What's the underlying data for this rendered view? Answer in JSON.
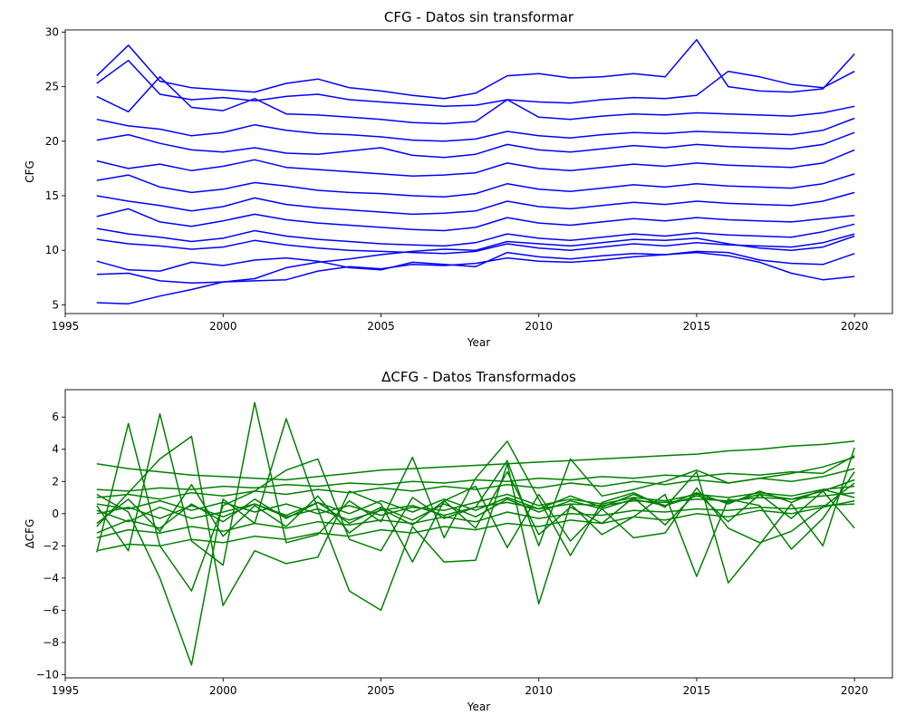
{
  "chart_data": [
    {
      "type": "line",
      "title": "CFG - Datos sin transformar",
      "xlabel": "Year",
      "ylabel": "CFG",
      "xlim": [
        1995,
        2021.2
      ],
      "ylim": [
        4.2,
        30.2
      ],
      "xticks": [
        1995,
        2000,
        2005,
        2010,
        2015,
        2020
      ],
      "yticks": [
        5,
        10,
        15,
        20,
        25,
        30
      ],
      "grid": false,
      "legend": "none",
      "line_color": "#0000ff",
      "x": [
        1996,
        1997,
        1998,
        1999,
        2000,
        2001,
        2002,
        2003,
        2004,
        2005,
        2006,
        2007,
        2008,
        2009,
        2010,
        2011,
        2012,
        2013,
        2014,
        2015,
        2016,
        2017,
        2018,
        2019,
        2020
      ],
      "series": [
        {
          "values": [
            26.0,
            28.8,
            25.5,
            24.9,
            24.7,
            24.5,
            25.3,
            25.7,
            24.9,
            24.6,
            24.2,
            23.9,
            24.4,
            26.0,
            26.2,
            25.8,
            25.9,
            26.2,
            25.9,
            29.3,
            25.0,
            24.6,
            24.5,
            24.8,
            28.0
          ]
        },
        {
          "values": [
            25.3,
            27.4,
            24.3,
            23.8,
            24.0,
            23.7,
            24.1,
            24.3,
            23.8,
            23.6,
            23.4,
            23.2,
            23.3,
            23.8,
            23.6,
            23.5,
            23.8,
            24.0,
            23.9,
            24.2,
            26.4,
            25.9,
            25.2,
            24.9,
            26.4
          ]
        },
        {
          "values": [
            24.1,
            22.7,
            25.9,
            23.1,
            22.8,
            23.9,
            22.5,
            22.4,
            22.2,
            22.0,
            21.7,
            21.6,
            21.8,
            23.8,
            22.2,
            22.0,
            22.3,
            22.5,
            22.4,
            22.6,
            22.5,
            22.4,
            22.3,
            22.6,
            23.2
          ]
        },
        {
          "values": [
            22.0,
            21.4,
            21.1,
            20.5,
            20.8,
            21.5,
            21.0,
            20.7,
            20.6,
            20.4,
            20.1,
            20.0,
            20.2,
            20.9,
            20.5,
            20.3,
            20.6,
            20.8,
            20.7,
            20.9,
            20.8,
            20.7,
            20.6,
            21.0,
            22.1
          ]
        },
        {
          "values": [
            20.1,
            20.6,
            19.8,
            19.2,
            19.0,
            19.4,
            18.9,
            18.8,
            19.1,
            19.4,
            18.7,
            18.5,
            18.8,
            19.7,
            19.2,
            19.0,
            19.3,
            19.6,
            19.4,
            19.7,
            19.5,
            19.4,
            19.3,
            19.7,
            20.8
          ]
        },
        {
          "values": [
            18.2,
            17.5,
            17.9,
            17.3,
            17.7,
            18.3,
            17.6,
            17.4,
            17.2,
            17.0,
            16.8,
            16.9,
            17.1,
            18.0,
            17.5,
            17.3,
            17.6,
            17.9,
            17.7,
            18.0,
            17.8,
            17.7,
            17.6,
            18.0,
            19.2
          ]
        },
        {
          "values": [
            16.4,
            16.9,
            15.8,
            15.3,
            15.6,
            16.2,
            15.9,
            15.5,
            15.3,
            15.2,
            15.0,
            14.9,
            15.2,
            16.1,
            15.6,
            15.4,
            15.7,
            16.0,
            15.8,
            16.1,
            15.9,
            15.8,
            15.7,
            16.1,
            17.0
          ]
        },
        {
          "values": [
            15.0,
            14.5,
            14.1,
            13.6,
            14.0,
            14.8,
            14.2,
            13.9,
            13.7,
            13.5,
            13.3,
            13.4,
            13.6,
            14.5,
            14.0,
            13.8,
            14.1,
            14.4,
            14.2,
            14.5,
            14.3,
            14.2,
            14.1,
            14.5,
            15.3
          ]
        },
        {
          "values": [
            13.1,
            13.8,
            12.6,
            12.2,
            12.7,
            13.3,
            12.8,
            12.5,
            12.3,
            12.1,
            11.9,
            11.8,
            12.1,
            13.0,
            12.5,
            12.3,
            12.6,
            12.9,
            12.7,
            13.0,
            12.8,
            12.7,
            12.6,
            12.9,
            13.2
          ]
        },
        {
          "values": [
            12.0,
            11.5,
            11.2,
            10.8,
            11.1,
            11.8,
            11.3,
            11.0,
            10.8,
            10.6,
            10.5,
            10.4,
            10.7,
            11.5,
            11.1,
            10.9,
            11.2,
            11.5,
            11.3,
            11.6,
            11.4,
            11.3,
            11.2,
            11.7,
            12.4
          ]
        },
        {
          "values": [
            11.0,
            10.6,
            10.4,
            10.1,
            10.3,
            10.9,
            10.5,
            10.2,
            10.0,
            9.9,
            9.8,
            9.7,
            9.9,
            10.6,
            10.2,
            10.0,
            10.3,
            10.6,
            10.4,
            10.7,
            10.5,
            10.4,
            10.3,
            10.7,
            11.5
          ]
        },
        {
          "values": [
            9.0,
            8.2,
            8.1,
            8.9,
            8.6,
            9.1,
            9.3,
            9.0,
            8.4,
            8.2,
            8.9,
            8.7,
            8.5,
            9.8,
            9.4,
            9.2,
            9.5,
            9.7,
            9.6,
            9.9,
            9.8,
            9.1,
            8.8,
            8.7,
            9.7
          ]
        },
        {
          "values": [
            7.8,
            7.9,
            7.2,
            7.0,
            7.1,
            7.2,
            7.3,
            8.1,
            8.5,
            8.3,
            8.7,
            8.6,
            8.8,
            9.3,
            9.0,
            8.9,
            9.1,
            9.4,
            9.6,
            9.8,
            9.5,
            8.9,
            7.9,
            7.3,
            7.6
          ]
        },
        {
          "values": [
            5.2,
            5.1,
            5.8,
            6.4,
            7.1,
            7.4,
            8.4,
            8.9,
            9.2,
            9.6,
            9.9,
            10.1,
            10.0,
            10.8,
            10.6,
            10.4,
            10.7,
            11.0,
            10.9,
            11.1,
            10.6,
            10.2,
            10.0,
            10.3,
            11.3
          ]
        }
      ]
    },
    {
      "type": "line",
      "title": "ΔCFG - Datos Transformados",
      "xlabel": "Year",
      "ylabel": "ΔCFG",
      "xlim": [
        1995,
        2021.2
      ],
      "ylim": [
        -10.2,
        7.7
      ],
      "xticks": [
        1995,
        2000,
        2005,
        2010,
        2015,
        2020
      ],
      "yticks": [
        -10,
        -8,
        -6,
        -4,
        -2,
        0,
        2,
        4,
        6
      ],
      "grid": false,
      "legend": "none",
      "line_color": "#008000",
      "x": [
        1996,
        1997,
        1998,
        1999,
        2000,
        2001,
        2002,
        2003,
        2004,
        2005,
        2006,
        2007,
        2008,
        2009,
        2010,
        2011,
        2012,
        2013,
        2014,
        2015,
        2016,
        2017,
        2018,
        2019,
        2020
      ],
      "series": [
        {
          "values": [
            3.1,
            2.8,
            2.6,
            2.4,
            2.3,
            2.2,
            2.1,
            2.3,
            2.5,
            2.7,
            2.8,
            2.9,
            3.0,
            3.1,
            3.2,
            3.3,
            3.4,
            3.5,
            3.6,
            3.7,
            3.9,
            4.0,
            4.2,
            4.3,
            4.5
          ]
        },
        {
          "values": [
            -2.4,
            5.6,
            -2.0,
            -4.8,
            0.5,
            1.4,
            2.7,
            3.4,
            -1.6,
            -2.3,
            1.0,
            -0.3,
            0.4,
            3.3,
            -2.0,
            3.4,
            1.1,
            1.5,
            2.0,
            2.7,
            1.9,
            2.2,
            2.5,
            2.9,
            3.5
          ]
        },
        {
          "values": [
            0.5,
            -2.3,
            6.2,
            -1.7,
            -3.2,
            6.9,
            -1.8,
            -1.3,
            0.8,
            -0.5,
            3.5,
            -1.5,
            2.2,
            4.5,
            0.9,
            -2.6,
            0.7,
            1.3,
            0.4,
            2.6,
            -4.3,
            -1.9,
            0.6,
            -2.0,
            4.1
          ]
        },
        {
          "values": [
            1.2,
            0.1,
            -4.0,
            -9.4,
            0.9,
            -0.6,
            5.9,
            0.3,
            -4.8,
            -6.0,
            -0.8,
            -3.0,
            -2.9,
            3.1,
            -5.6,
            0.6,
            -1.3,
            -0.2,
            1.2,
            -3.9,
            0.9,
            0.5,
            -2.2,
            -0.3,
            2.6
          ]
        },
        {
          "values": [
            -0.8,
            1.3,
            3.4,
            4.8,
            -5.7,
            -2.3,
            -3.1,
            -2.7,
            1.4,
            0.6,
            -3.0,
            0.8,
            1.7,
            -2.1,
            1.2,
            -1.7,
            0.3,
            -1.5,
            -1.2,
            1.6,
            -0.9,
            -1.8,
            -1.1,
            0.4,
            1.9
          ]
        },
        {
          "values": [
            0.2,
            -0.5,
            0.4,
            -0.3,
            0.1,
            0.6,
            -0.2,
            0.3,
            -0.4,
            0.2,
            0.5,
            -0.1,
            0.4,
            0.7,
            0.3,
            0.6,
            0.5,
            0.8,
            0.7,
            0.9,
            0.8,
            1.0,
            0.9,
            1.1,
            1.3
          ]
        },
        {
          "values": [
            -1.5,
            -1.0,
            -1.2,
            -0.8,
            -1.1,
            -0.6,
            -0.9,
            -0.5,
            -0.7,
            -0.4,
            -0.6,
            -0.2,
            -0.5,
            0.1,
            -0.3,
            0.0,
            -0.1,
            0.2,
            0.1,
            0.3,
            0.2,
            0.4,
            0.3,
            0.5,
            0.6
          ]
        },
        {
          "values": [
            1.0,
            1.2,
            0.9,
            1.3,
            1.1,
            1.4,
            1.2,
            1.5,
            1.3,
            1.6,
            1.4,
            1.7,
            1.5,
            1.8,
            1.6,
            1.9,
            1.7,
            2.0,
            1.8,
            2.1,
            1.9,
            2.2,
            2.0,
            2.3,
            2.8
          ]
        },
        {
          "values": [
            -2.3,
            -1.9,
            -2.0,
            -1.6,
            -1.8,
            -1.4,
            -1.6,
            -1.2,
            -1.4,
            -1.0,
            -1.2,
            -0.8,
            -1.0,
            -0.6,
            -0.8,
            -0.4,
            -0.6,
            -0.2,
            -0.4,
            0.0,
            -0.2,
            0.2,
            0.0,
            0.4,
            0.8
          ]
        },
        {
          "values": [
            0.6,
            0.3,
            0.8,
            0.2,
            0.7,
            0.1,
            0.6,
            0.0,
            0.5,
            -0.1,
            0.4,
            0.2,
            0.7,
            1.2,
            0.5,
            0.9,
            0.6,
            1.0,
            0.8,
            1.2,
            1.0,
            1.3,
            1.1,
            1.5,
            1.7
          ]
        },
        {
          "values": [
            -0.6,
            0.9,
            -1.1,
            1.8,
            -1.4,
            0.5,
            -0.8,
            1.1,
            -1.2,
            0.3,
            -0.7,
            0.8,
            -0.9,
            2.6,
            -1.3,
            0.4,
            -0.6,
            1.0,
            -0.7,
            1.3,
            -0.5,
            1.2,
            -0.3,
            1.4,
            2.1
          ]
        },
        {
          "values": [
            1.5,
            1.4,
            1.6,
            1.5,
            1.7,
            1.6,
            1.8,
            1.7,
            1.9,
            1.8,
            2.0,
            1.9,
            2.1,
            2.0,
            2.2,
            2.1,
            2.3,
            2.2,
            2.4,
            2.3,
            2.5,
            2.4,
            2.6,
            2.5,
            3.6
          ]
        },
        {
          "values": [
            -1.2,
            -0.4,
            -0.9,
            0.6,
            -0.5,
            0.9,
            -0.3,
            0.7,
            -0.6,
            0.4,
            -0.4,
            0.6,
            -0.2,
            0.9,
            0.1,
            0.8,
            0.3,
            0.9,
            0.5,
            1.1,
            0.7,
            1.2,
            0.9,
            1.4,
            -0.9
          ]
        },
        {
          "values": [
            0.0,
            0.4,
            -0.3,
            0.5,
            -0.2,
            0.6,
            -0.1,
            0.7,
            0.0,
            0.8,
            0.1,
            0.9,
            0.2,
            1.0,
            0.3,
            1.1,
            0.4,
            1.2,
            0.5,
            1.3,
            0.6,
            1.4,
            0.7,
            1.5,
            1.0
          ]
        }
      ]
    }
  ]
}
